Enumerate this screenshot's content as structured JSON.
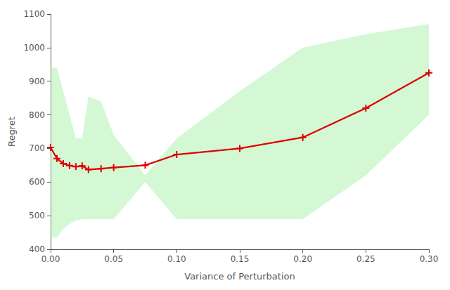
{
  "chart_data": {
    "type": "line",
    "xlabel": "Variance of Perturbation",
    "ylabel": "Regret",
    "x": [
      0.0,
      0.005,
      0.01,
      0.015,
      0.02,
      0.025,
      0.03,
      0.04,
      0.05,
      0.075,
      0.1,
      0.15,
      0.2,
      0.25,
      0.3
    ],
    "series": [
      {
        "type": "band",
        "color": "#90ee90",
        "upper": [
          940,
          940,
          870,
          800,
          730,
          730,
          855,
          840,
          740,
          620,
          730,
          870,
          1000,
          1040,
          1070
        ],
        "lower": [
          435,
          435,
          460,
          475,
          485,
          490,
          490,
          490,
          490,
          600,
          490,
          490,
          490,
          620,
          800
        ]
      },
      {
        "type": "line",
        "color": "#dd0000",
        "marker": "plus",
        "values": [
          703,
          670,
          655,
          649,
          646,
          648,
          637,
          640,
          643,
          650,
          682,
          700,
          733,
          820,
          925
        ]
      }
    ],
    "xlim": [
      0.0,
      0.3
    ],
    "ylim": [
      400,
      1100
    ],
    "xticks": [
      {
        "value": 0.0,
        "label": "0.00"
      },
      0.05,
      {
        "value": 0.1,
        "label": "0.10"
      },
      0.15,
      {
        "value": 0.2,
        "label": "0.20"
      },
      0.25,
      {
        "value": 0.3,
        "label": "0.30"
      }
    ],
    "yticks": [
      400,
      500,
      600,
      700,
      800,
      900,
      1000,
      1100
    ],
    "grid": false
  }
}
